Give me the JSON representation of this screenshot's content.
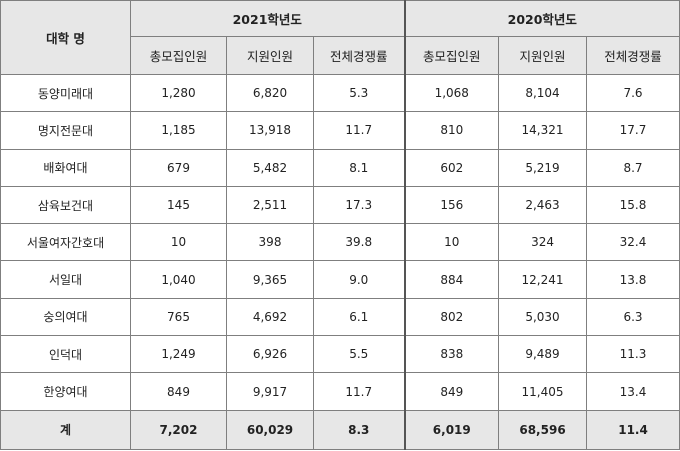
{
  "header": {
    "college_label": "대학 명",
    "groups": [
      "2021학년도",
      "2020학년도"
    ],
    "columns": [
      "총모집인원",
      "지원인원",
      "전체경쟁률"
    ]
  },
  "rows": [
    {
      "name": "동양미래대",
      "y2021": [
        "1,280",
        "6,820",
        "5.3"
      ],
      "y2020": [
        "1,068",
        "8,104",
        "7.6"
      ]
    },
    {
      "name": "명지전문대",
      "y2021": [
        "1,185",
        "13,918",
        "11.7"
      ],
      "y2020": [
        "810",
        "14,321",
        "17.7"
      ]
    },
    {
      "name": "배화여대",
      "y2021": [
        "679",
        "5,482",
        "8.1"
      ],
      "y2020": [
        "602",
        "5,219",
        "8.7"
      ]
    },
    {
      "name": "삼육보건대",
      "y2021": [
        "145",
        "2,511",
        "17.3"
      ],
      "y2020": [
        "156",
        "2,463",
        "15.8"
      ]
    },
    {
      "name": "서울여자간호대",
      "y2021": [
        "10",
        "398",
        "39.8"
      ],
      "y2020": [
        "10",
        "324",
        "32.4"
      ]
    },
    {
      "name": "서일대",
      "y2021": [
        "1,040",
        "9,365",
        "9.0"
      ],
      "y2020": [
        "884",
        "12,241",
        "13.8"
      ]
    },
    {
      "name": "숭의여대",
      "y2021": [
        "765",
        "4,692",
        "6.1"
      ],
      "y2020": [
        "802",
        "5,030",
        "6.3"
      ]
    },
    {
      "name": "인덕대",
      "y2021": [
        "1,249",
        "6,926",
        "5.5"
      ],
      "y2020": [
        "838",
        "9,489",
        "11.3"
      ]
    },
    {
      "name": "한양여대",
      "y2021": [
        "849",
        "9,917",
        "11.7"
      ],
      "y2020": [
        "849",
        "11,405",
        "13.4"
      ]
    }
  ],
  "total": {
    "name": "계",
    "y2021": [
      "7,202",
      "60,029",
      "8.3"
    ],
    "y2020": [
      "6,019",
      "68,596",
      "11.4"
    ]
  }
}
